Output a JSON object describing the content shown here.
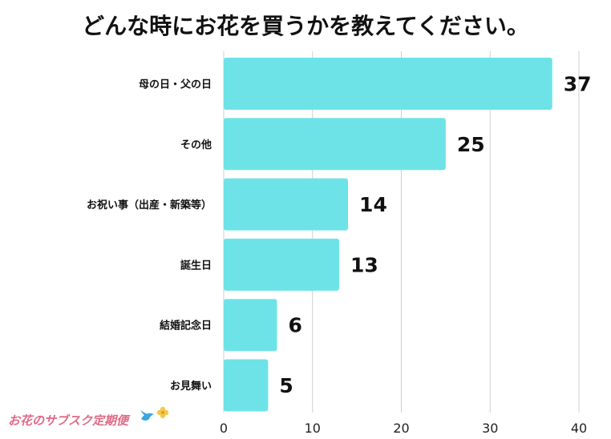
{
  "chart_data": {
    "type": "bar",
    "orientation": "horizontal",
    "title": "どんな時にお花を買うかを教えてください。",
    "categories": [
      "母の日・父の日",
      "その他",
      "お祝い事（出産・新築等）",
      "誕生日",
      "結婚記念日",
      "お見舞い"
    ],
    "values": [
      37,
      25,
      14,
      13,
      6,
      5
    ],
    "xlim": [
      0,
      40
    ],
    "xticks": [
      "0",
      "10",
      "20",
      "30",
      "40"
    ],
    "grid": "vertical",
    "bar_color": "#6de3e8",
    "grid_color": "#cfcfcf"
  },
  "branding": {
    "text": "お花のサブスク定期便",
    "text_color": "#e06a86",
    "bird_icon": "bird-icon",
    "bird_color": "#3aa6dd",
    "flower_icon": "flower-icon",
    "flower_color": "#f2c94c"
  }
}
